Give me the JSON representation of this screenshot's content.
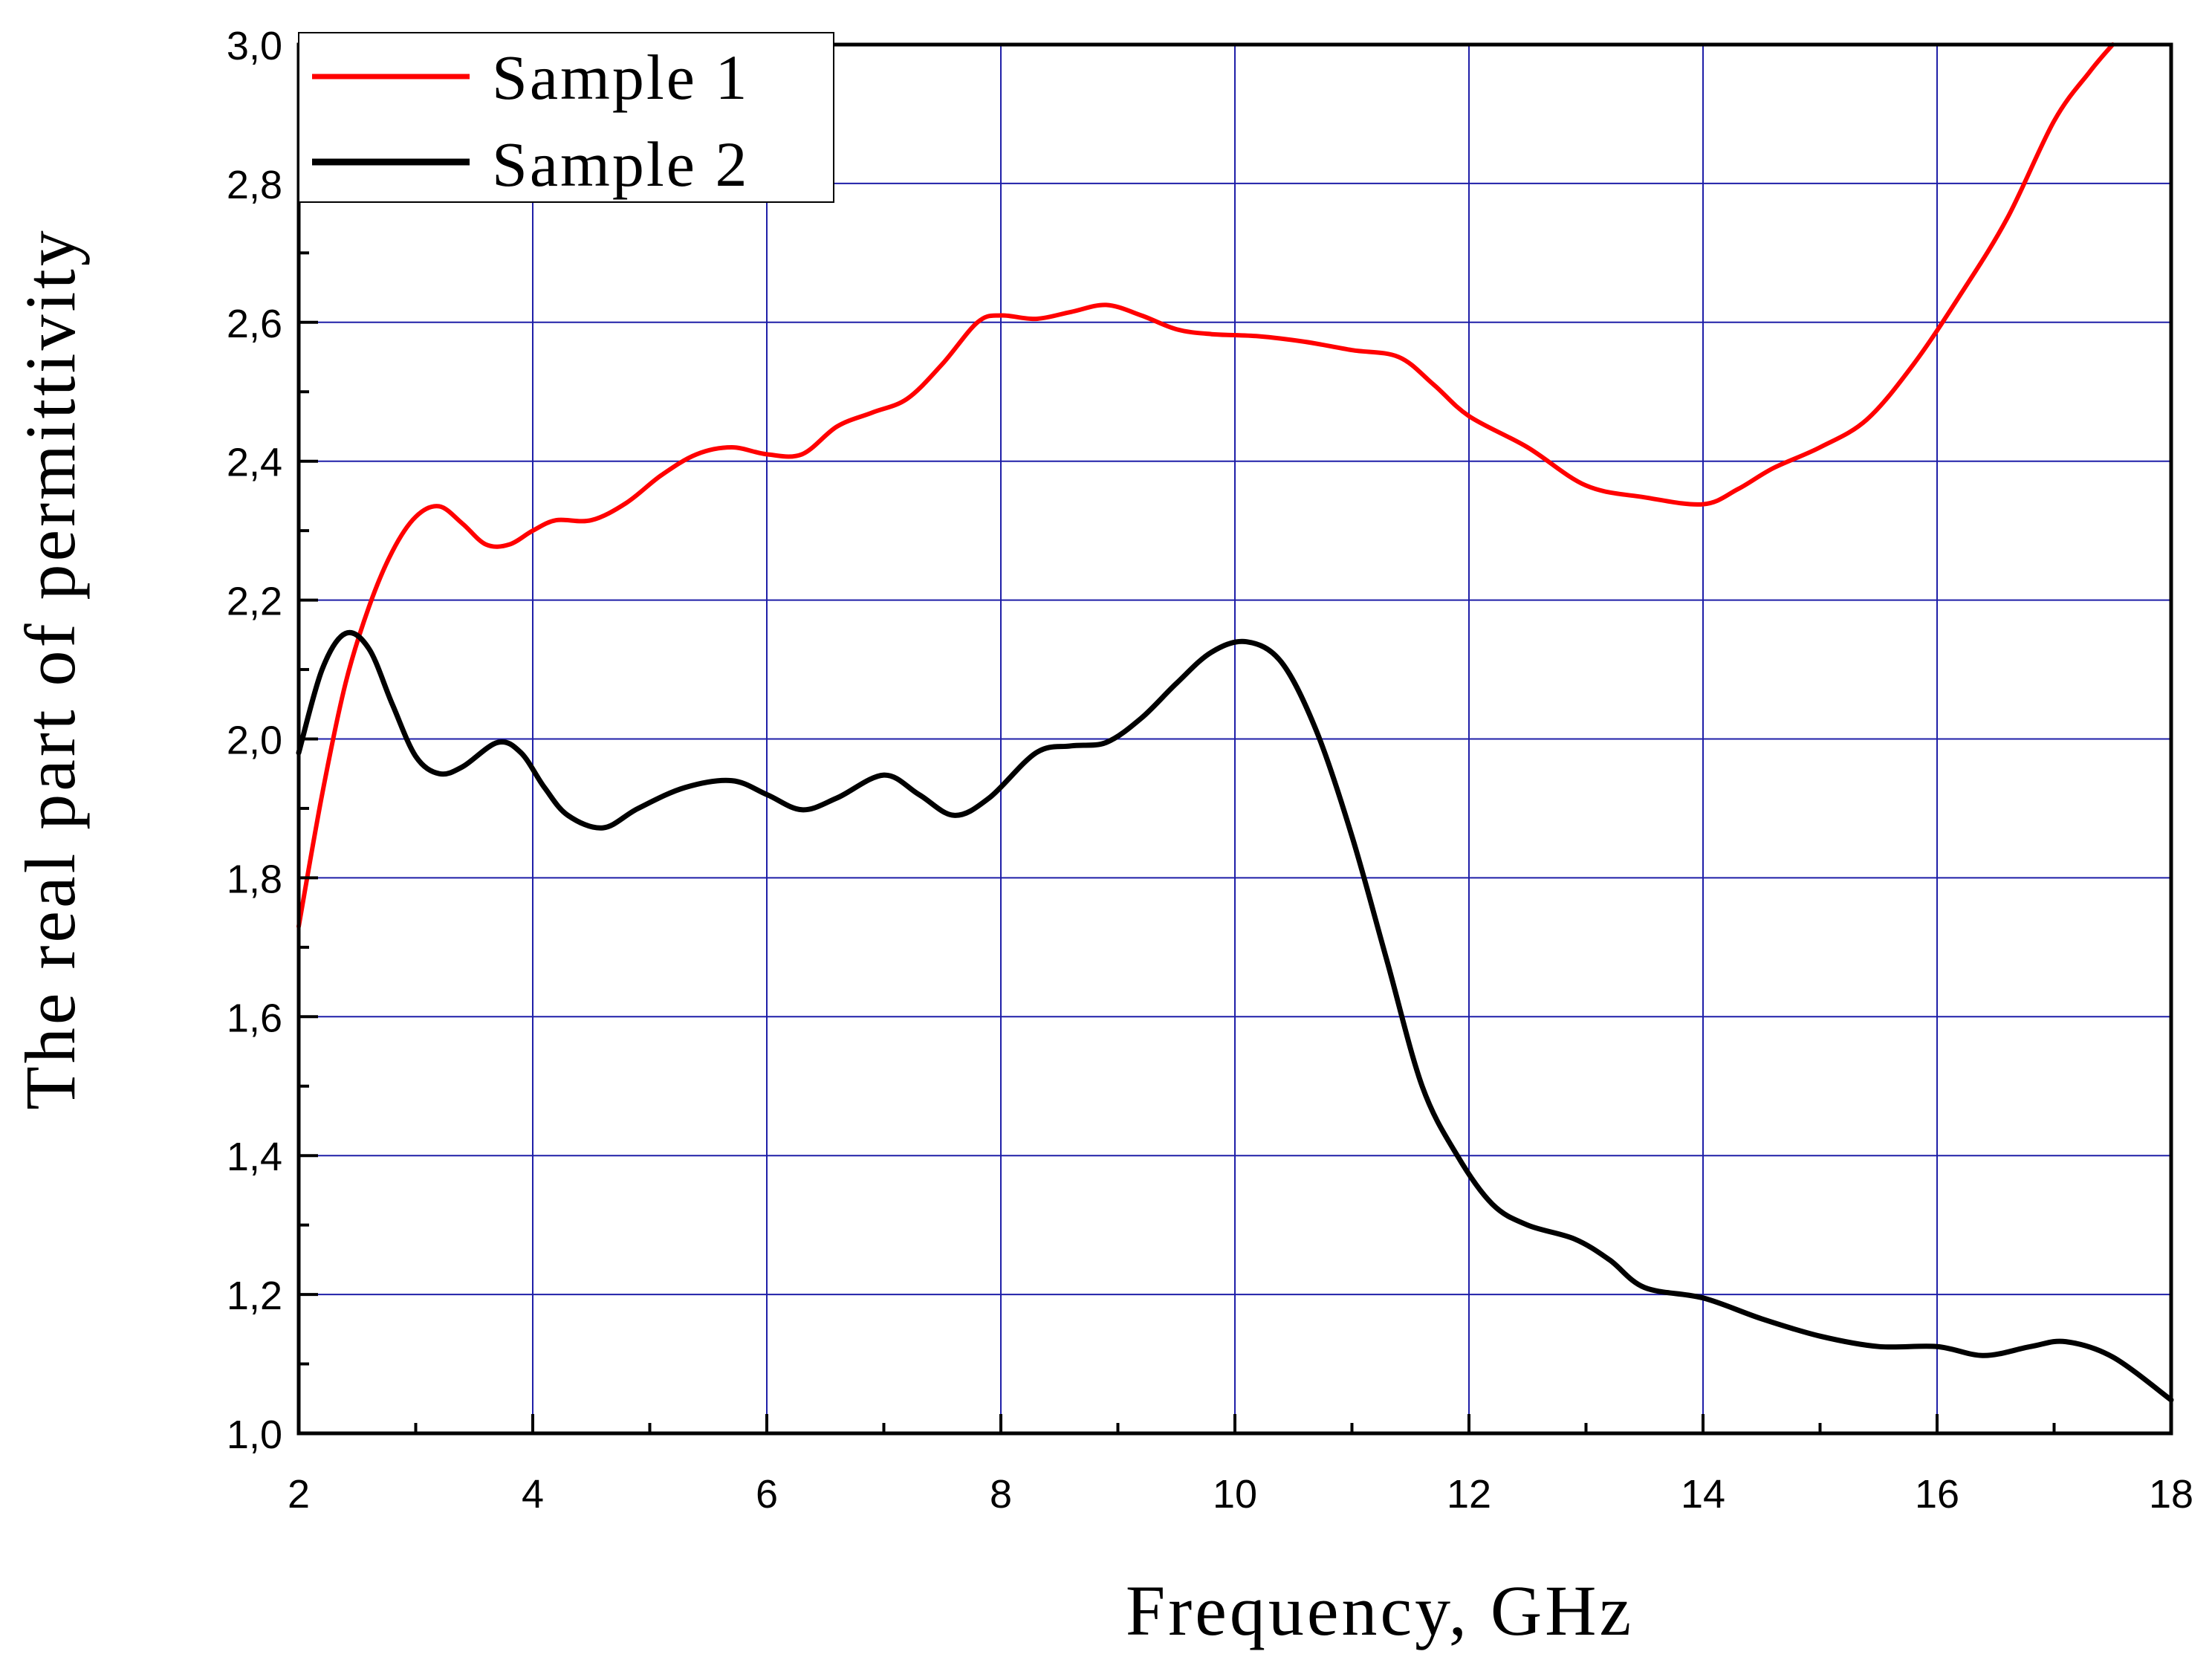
{
  "chart_data": {
    "type": "line",
    "title": "",
    "xlabel": "Frequency, GHz",
    "ylabel": "The real part of permittivity",
    "xlim": [
      2,
      18
    ],
    "ylim": [
      1.0,
      3.0
    ],
    "grid": true,
    "grid_color": "#1f1fa8",
    "legend_position": "top-left",
    "x_ticks": [
      "2",
      "4",
      "6",
      "8",
      "10",
      "12",
      "14",
      "16",
      "18"
    ],
    "y_ticks": [
      "1,0",
      "1,2",
      "1,4",
      "1,6",
      "1,8",
      "2,0",
      "2,2",
      "2,4",
      "2,6",
      "2,8",
      "3,0"
    ],
    "series": [
      {
        "name": "Sample 1",
        "color": "#ff0000",
        "points": [
          [
            2.0,
            1.73
          ],
          [
            2.2,
            1.92
          ],
          [
            2.4,
            2.08
          ],
          [
            2.6,
            2.19
          ],
          [
            2.8,
            2.27
          ],
          [
            3.0,
            2.32
          ],
          [
            3.2,
            2.335
          ],
          [
            3.4,
            2.31
          ],
          [
            3.6,
            2.28
          ],
          [
            3.8,
            2.28
          ],
          [
            4.0,
            2.3
          ],
          [
            4.2,
            2.315
          ],
          [
            4.5,
            2.315
          ],
          [
            4.8,
            2.34
          ],
          [
            5.1,
            2.38
          ],
          [
            5.4,
            2.41
          ],
          [
            5.7,
            2.42
          ],
          [
            6.0,
            2.41
          ],
          [
            6.3,
            2.41
          ],
          [
            6.6,
            2.45
          ],
          [
            6.9,
            2.47
          ],
          [
            7.2,
            2.49
          ],
          [
            7.5,
            2.54
          ],
          [
            7.8,
            2.6
          ],
          [
            8.0,
            2.61
          ],
          [
            8.3,
            2.605
          ],
          [
            8.6,
            2.615
          ],
          [
            8.9,
            2.625
          ],
          [
            9.2,
            2.61
          ],
          [
            9.5,
            2.59
          ],
          [
            9.8,
            2.583
          ],
          [
            10.2,
            2.58
          ],
          [
            10.6,
            2.572
          ],
          [
            11.0,
            2.56
          ],
          [
            11.4,
            2.55
          ],
          [
            11.7,
            2.51
          ],
          [
            12.0,
            2.465
          ],
          [
            12.5,
            2.42
          ],
          [
            13.0,
            2.365
          ],
          [
            13.5,
            2.348
          ],
          [
            14.0,
            2.338
          ],
          [
            14.3,
            2.36
          ],
          [
            14.6,
            2.39
          ],
          [
            15.0,
            2.42
          ],
          [
            15.4,
            2.46
          ],
          [
            15.8,
            2.54
          ],
          [
            16.2,
            2.64
          ],
          [
            16.6,
            2.75
          ],
          [
            17.0,
            2.89
          ],
          [
            17.3,
            2.96
          ],
          [
            17.5,
            3.0
          ]
        ]
      },
      {
        "name": "Sample 2",
        "color": "#000000",
        "points": [
          [
            2.0,
            1.98
          ],
          [
            2.2,
            2.1
          ],
          [
            2.4,
            2.152
          ],
          [
            2.6,
            2.13
          ],
          [
            2.8,
            2.05
          ],
          [
            3.0,
            1.975
          ],
          [
            3.2,
            1.95
          ],
          [
            3.4,
            1.96
          ],
          [
            3.7,
            1.995
          ],
          [
            3.9,
            1.98
          ],
          [
            4.1,
            1.93
          ],
          [
            4.3,
            1.89
          ],
          [
            4.6,
            1.872
          ],
          [
            4.9,
            1.9
          ],
          [
            5.3,
            1.93
          ],
          [
            5.7,
            1.94
          ],
          [
            6.0,
            1.92
          ],
          [
            6.3,
            1.898
          ],
          [
            6.6,
            1.915
          ],
          [
            7.0,
            1.948
          ],
          [
            7.3,
            1.92
          ],
          [
            7.6,
            1.89
          ],
          [
            7.9,
            1.915
          ],
          [
            8.3,
            1.98
          ],
          [
            8.6,
            1.99
          ],
          [
            8.9,
            1.995
          ],
          [
            9.2,
            2.03
          ],
          [
            9.5,
            2.08
          ],
          [
            9.8,
            2.125
          ],
          [
            10.1,
            2.14
          ],
          [
            10.4,
            2.11
          ],
          [
            10.7,
            2.01
          ],
          [
            11.0,
            1.86
          ],
          [
            11.3,
            1.68
          ],
          [
            11.6,
            1.5
          ],
          [
            11.9,
            1.4
          ],
          [
            12.2,
            1.33
          ],
          [
            12.5,
            1.3
          ],
          [
            12.9,
            1.28
          ],
          [
            13.2,
            1.25
          ],
          [
            13.5,
            1.21
          ],
          [
            14.0,
            1.195
          ],
          [
            14.5,
            1.165
          ],
          [
            15.0,
            1.14
          ],
          [
            15.5,
            1.125
          ],
          [
            16.0,
            1.125
          ],
          [
            16.4,
            1.112
          ],
          [
            16.8,
            1.125
          ],
          [
            17.1,
            1.132
          ],
          [
            17.5,
            1.11
          ],
          [
            18.0,
            1.048
          ]
        ]
      }
    ]
  }
}
